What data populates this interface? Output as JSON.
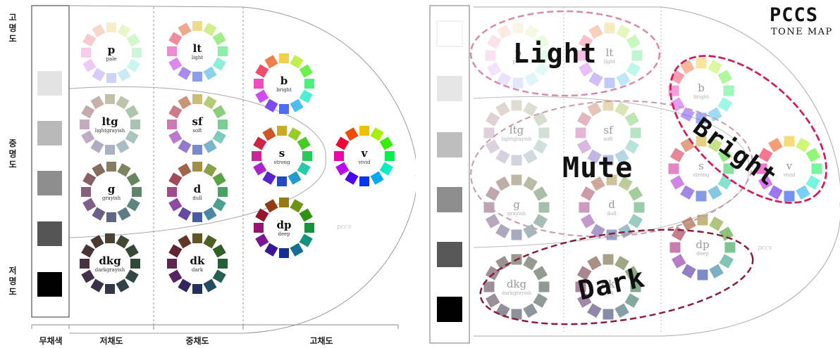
{
  "left": {
    "lightness_labels": [
      {
        "key": "high",
        "text": "고명도"
      },
      {
        "key": "mid",
        "text": "중명도"
      },
      {
        "key": "low",
        "text": "저명도"
      }
    ],
    "chroma_labels": [
      "무채색",
      "저채도",
      "중채도",
      "고채도"
    ],
    "signature": "pccs",
    "grays": [
      "#ffffff",
      "#e3e3e3",
      "#b9b9b9",
      "#8e8e8e",
      "#555555",
      "#000000"
    ]
  },
  "right": {
    "title": "PCCS",
    "subtitle": "TONE MAP",
    "groups": [
      {
        "key": "light",
        "label": "Light",
        "color": "#d98aa6"
      },
      {
        "key": "mute",
        "label": "Mute",
        "color": "#c79aa8"
      },
      {
        "key": "bright",
        "label": "Bright",
        "color": "#d01f5c"
      },
      {
        "key": "dark",
        "label": "Dark",
        "color": "#8a1e3c"
      }
    ],
    "signature": "pccs",
    "grays": [
      "#ffffff",
      "#e6e6e6",
      "#bdbdbd",
      "#8e8e8e",
      "#575757",
      "#000000"
    ]
  },
  "tones": [
    {
      "code": "p",
      "name": "pale"
    },
    {
      "code": "lt",
      "name": "light"
    },
    {
      "code": "b",
      "name": "bright"
    },
    {
      "code": "ltg",
      "name": "lightgrayish"
    },
    {
      "code": "sf",
      "name": "soft"
    },
    {
      "code": "s",
      "name": "strong"
    },
    {
      "code": "v",
      "name": "vivid"
    },
    {
      "code": "g",
      "name": "grayish"
    },
    {
      "code": "d",
      "name": "dull"
    },
    {
      "code": "dp",
      "name": "deep"
    },
    {
      "code": "dkg",
      "name": "darkgrayish"
    },
    {
      "code": "dk",
      "name": "dark"
    }
  ]
}
